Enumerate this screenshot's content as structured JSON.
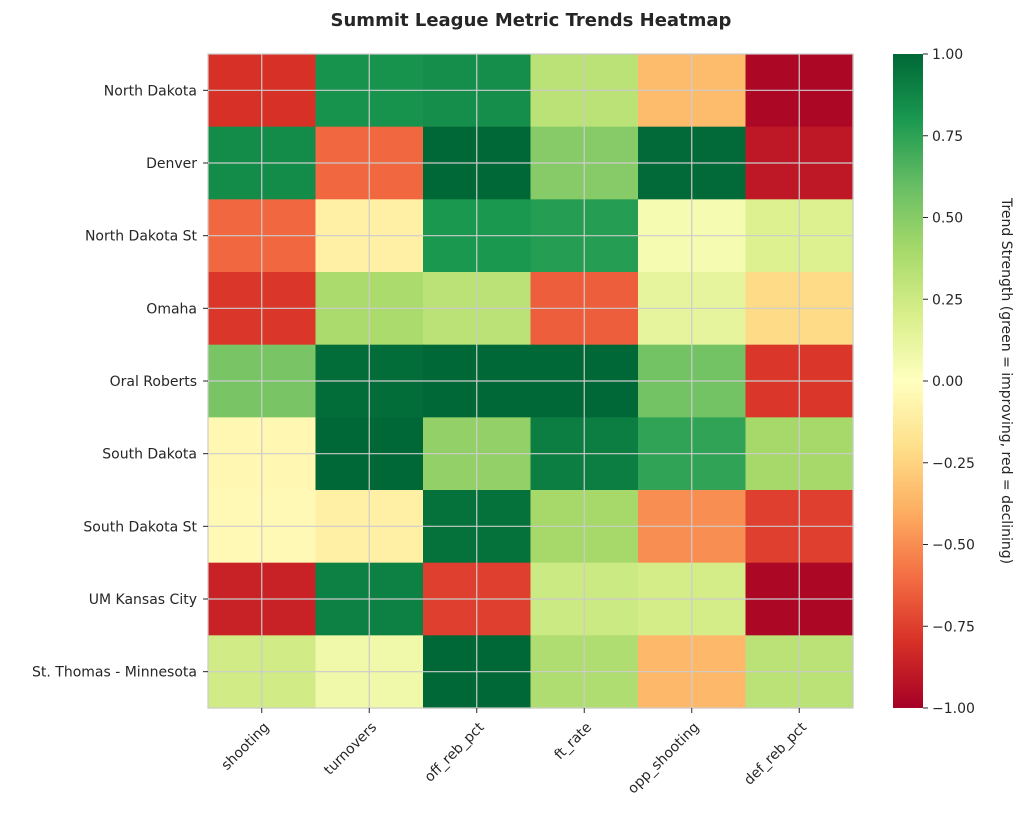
{
  "chart_data": {
    "type": "heatmap",
    "title": "Summit League Metric Trends Heatmap",
    "rows": [
      "North Dakota",
      "Denver",
      "North Dakota St",
      "Omaha",
      "Oral Roberts",
      "South Dakota",
      "South Dakota St",
      "UM Kansas City",
      "St. Thomas - Minnesota"
    ],
    "columns": [
      "shooting",
      "turnovers",
      "off_reb_pct",
      "ft_rate",
      "opp_shooting",
      "def_reb_pct"
    ],
    "values": [
      [
        -0.8,
        0.82,
        0.84,
        0.32,
        -0.35,
        -0.97
      ],
      [
        0.85,
        -0.62,
        1.0,
        0.5,
        0.99,
        -0.9
      ],
      [
        -0.62,
        -0.1,
        0.8,
        0.77,
        0.05,
        0.18
      ],
      [
        -0.78,
        0.38,
        0.32,
        -0.65,
        0.13,
        -0.22
      ],
      [
        0.54,
        0.98,
        1.0,
        1.0,
        0.56,
        -0.78
      ],
      [
        -0.05,
        1.0,
        0.46,
        0.91,
        0.74,
        0.4
      ],
      [
        -0.04,
        -0.1,
        0.96,
        0.4,
        -0.5,
        -0.75
      ],
      [
        -0.86,
        0.9,
        -0.75,
        0.25,
        0.22,
        -0.97
      ],
      [
        0.23,
        0.08,
        1.0,
        0.36,
        -0.36,
        0.32
      ]
    ],
    "vmin": -1.0,
    "vmax": 1.0,
    "colormap": "RdYlGn",
    "colorbar": {
      "label": "Trend Strength (green = improving, red = declining)",
      "ticks": [
        1.0,
        0.75,
        0.5,
        0.25,
        0.0,
        -0.25,
        -0.5,
        -0.75,
        -1.0
      ],
      "tick_labels": [
        "1.00",
        "0.75",
        "0.50",
        "0.25",
        "0.00",
        "−0.25",
        "−0.50",
        "−0.75",
        "−1.00"
      ]
    },
    "grid": true
  }
}
